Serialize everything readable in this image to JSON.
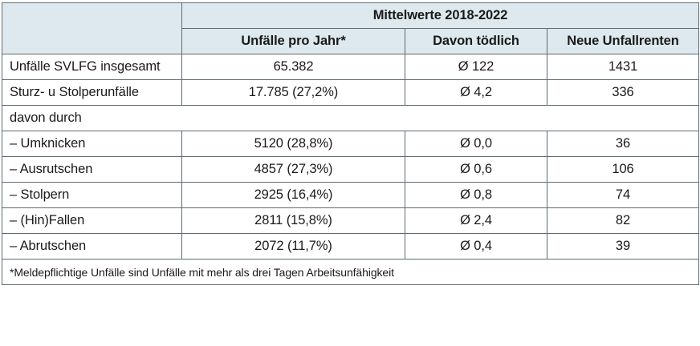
{
  "table": {
    "group_header": "Mittelwerte 2018-2022",
    "columns": [
      "Unfälle pro Jahr*",
      "Davon tödlich",
      "Neue Unfallrenten"
    ],
    "rows": [
      {
        "label": "Unfälle SVLFG insgesamt",
        "values": [
          "65.382",
          "Ø 122",
          "1431"
        ]
      },
      {
        "label": "Sturz- u Stolperunfälle",
        "values": [
          "17.785 (27,2%)",
          "Ø 4,2",
          "336"
        ]
      },
      {
        "label": "davon durch",
        "values": []
      },
      {
        "label": "– Umknicken",
        "values": [
          "5120 (28,8%)",
          "Ø 0,0",
          "36"
        ]
      },
      {
        "label": "– Ausrutschen",
        "values": [
          "4857 (27,3%)",
          "Ø 0,6",
          "106"
        ]
      },
      {
        "label": "– Stolpern",
        "values": [
          "2925 (16,4%)",
          "Ø 0,8",
          "74"
        ]
      },
      {
        "label": "– (Hin)Fallen",
        "values": [
          "2811 (15,8%)",
          "Ø 2,4",
          "82"
        ]
      },
      {
        "label": "– Abrutschen",
        "values": [
          "2072 (11,7%)",
          "Ø 0,4",
          "39"
        ]
      }
    ],
    "footnote": "*Meldepflichtige Unfälle sind Unfälle mit mehr als drei Tagen Arbeitsunfähigkeit"
  },
  "colors": {
    "header_bg": "#dde9ee",
    "border": "#5f6b70"
  }
}
